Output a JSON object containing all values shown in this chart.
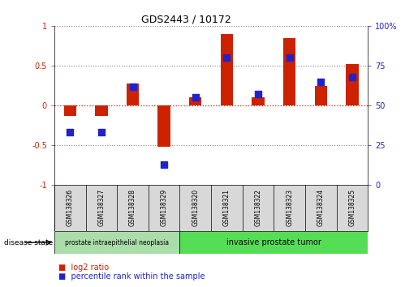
{
  "title": "GDS2443 / 10172",
  "samples": [
    "GSM138326",
    "GSM138327",
    "GSM138328",
    "GSM138329",
    "GSM138320",
    "GSM138321",
    "GSM138322",
    "GSM138323",
    "GSM138324",
    "GSM138325"
  ],
  "log2_ratio": [
    -0.13,
    -0.13,
    0.28,
    -0.52,
    0.1,
    0.9,
    0.1,
    0.85,
    0.25,
    0.52
  ],
  "percentile_rank": [
    33,
    33,
    62,
    13,
    55,
    80,
    57,
    80,
    65,
    68
  ],
  "bar_color": "#cc2200",
  "dot_color": "#2222cc",
  "ylim_left": [
    -1,
    1
  ],
  "ylim_right": [
    0,
    100
  ],
  "yticks_left": [
    -1,
    -0.5,
    0,
    0.5,
    1
  ],
  "yticks_right": [
    0,
    25,
    50,
    75,
    100
  ],
  "ytick_labels_left": [
    "-1",
    "-0.5",
    "0",
    "0.5",
    "1"
  ],
  "ytick_labels_right": [
    "0",
    "25",
    "50",
    "75",
    "100%"
  ],
  "group1_label": "prostate intraepithelial neoplasia",
  "group2_label": "invasive prostate tumor",
  "group1_color": "#aaddaa",
  "group2_color": "#55dd55",
  "disease_state_label": "disease state",
  "legend_bar_label": "log2 ratio",
  "legend_dot_label": "percentile rank within the sample",
  "dotted_line_color": "#888888",
  "zero_line_color": "#cc2200",
  "bar_width": 0.4,
  "dot_size": 40,
  "n_group1": 4,
  "n_group2": 6
}
